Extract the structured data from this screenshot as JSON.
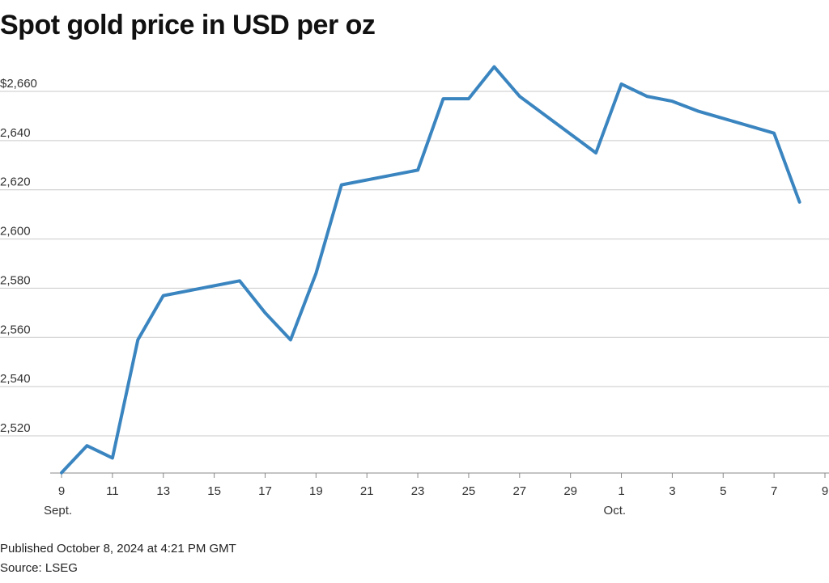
{
  "title": "Spot gold price in USD per oz",
  "footer": {
    "published": "Published October 8, 2024 at 4:21 PM GMT",
    "source": "Source: LSEG"
  },
  "chart_data": {
    "type": "line",
    "title": "Spot gold price in USD per oz",
    "xlabel": "",
    "ylabel": "",
    "grid": true,
    "line_color": "#3a85c0",
    "ylim": [
      2500,
      2675
    ],
    "y_ticks": [
      2520,
      2540,
      2560,
      2580,
      2600,
      2620,
      2640,
      2660
    ],
    "y_tick_labels": [
      "2,520",
      "2,540",
      "2,560",
      "2,580",
      "2,600",
      "2,620",
      "2,640",
      "2,660"
    ],
    "y_top_prefix": "$",
    "x_ticks": [
      {
        "date": "2024-09-09",
        "label": "9",
        "sub": "Sept."
      },
      {
        "date": "2024-09-11",
        "label": "11"
      },
      {
        "date": "2024-09-13",
        "label": "13"
      },
      {
        "date": "2024-09-15",
        "label": "15"
      },
      {
        "date": "2024-09-17",
        "label": "17"
      },
      {
        "date": "2024-09-19",
        "label": "19"
      },
      {
        "date": "2024-09-21",
        "label": "21"
      },
      {
        "date": "2024-09-23",
        "label": "23"
      },
      {
        "date": "2024-09-25",
        "label": "25"
      },
      {
        "date": "2024-09-27",
        "label": "27"
      },
      {
        "date": "2024-09-29",
        "label": "29"
      },
      {
        "date": "2024-10-01",
        "label": "1",
        "sub": "Oct."
      },
      {
        "date": "2024-10-03",
        "label": "3"
      },
      {
        "date": "2024-10-05",
        "label": "5"
      },
      {
        "date": "2024-10-07",
        "label": "7"
      },
      {
        "date": "2024-10-09",
        "label": "9"
      }
    ],
    "x_range": [
      "2024-09-09",
      "2024-10-09"
    ],
    "points": [
      {
        "x": "2024-09-09",
        "y": 2505
      },
      {
        "x": "2024-09-10",
        "y": 2516
      },
      {
        "x": "2024-09-11",
        "y": 2511
      },
      {
        "x": "2024-09-12",
        "y": 2559
      },
      {
        "x": "2024-09-13",
        "y": 2577
      },
      {
        "x": "2024-09-16",
        "y": 2583
      },
      {
        "x": "2024-09-17",
        "y": 2570
      },
      {
        "x": "2024-09-18",
        "y": 2559
      },
      {
        "x": "2024-09-19",
        "y": 2586
      },
      {
        "x": "2024-09-20",
        "y": 2622
      },
      {
        "x": "2024-09-23",
        "y": 2628
      },
      {
        "x": "2024-09-24",
        "y": 2657
      },
      {
        "x": "2024-09-25",
        "y": 2657
      },
      {
        "x": "2024-09-26",
        "y": 2670
      },
      {
        "x": "2024-09-27",
        "y": 2658
      },
      {
        "x": "2024-09-30",
        "y": 2635
      },
      {
        "x": "2024-10-01",
        "y": 2663
      },
      {
        "x": "2024-10-02",
        "y": 2658
      },
      {
        "x": "2024-10-03",
        "y": 2656
      },
      {
        "x": "2024-10-04",
        "y": 2652
      },
      {
        "x": "2024-10-07",
        "y": 2643
      },
      {
        "x": "2024-10-08",
        "y": 2615
      }
    ]
  }
}
